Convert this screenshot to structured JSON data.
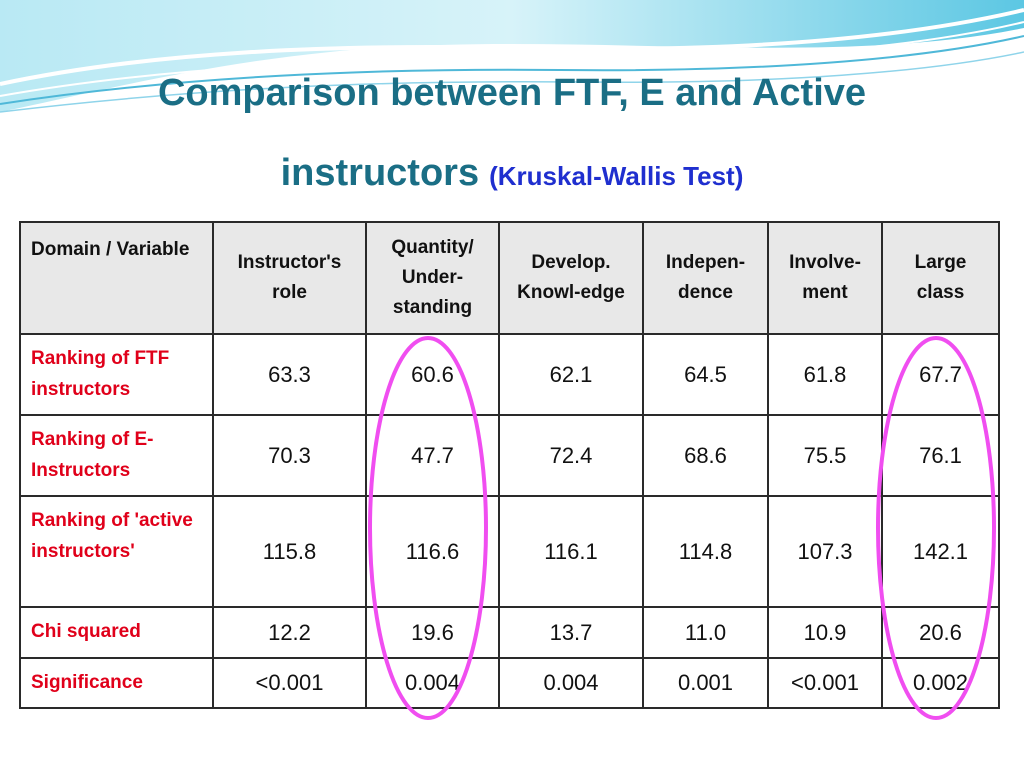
{
  "title": {
    "line1": "Comparison between FTF, E and Active",
    "line2": "instructors",
    "subtitle": "(Kruskal-Wallis Test)"
  },
  "table": {
    "header": [
      "Domain / Variable",
      "Instructor's role",
      "Quantity/ Under-standing",
      "Develop. Knowl-edge",
      "Indepen-dence",
      "Involve-ment",
      "Large class"
    ],
    "rows": [
      {
        "label": "Ranking of FTF instructors",
        "values": [
          "63.3",
          "60.6",
          "62.1",
          "64.5",
          "61.8",
          "67.7"
        ]
      },
      {
        "label": "Ranking of E-Instructors",
        "values": [
          "70.3",
          "47.7",
          "72.4",
          "68.6",
          "75.5",
          "76.1"
        ]
      },
      {
        "label": "Ranking of 'active instructors'",
        "values": [
          "115.8",
          "116.6",
          "116.1",
          "114.8",
          "107.3",
          "142.1"
        ]
      },
      {
        "label": "Chi squared",
        "values": [
          "12.2",
          "19.6",
          "13.7",
          "11.0",
          "10.9",
          "20.6"
        ]
      },
      {
        "label": "Significance",
        "values": [
          "<0.001",
          "0.004",
          "0.004",
          "0.001",
          "<0.001",
          "0.002"
        ]
      }
    ]
  },
  "annotations": {
    "highlight_color": "#f04ef0",
    "highlighted_columns": [
      "Quantity/ Under-standing",
      "Large class"
    ]
  },
  "colors": {
    "title": "#1a6e85",
    "subtitle": "#1f2fcf",
    "row_label": "#e0001a",
    "header_bg": "#e8e8e8"
  }
}
